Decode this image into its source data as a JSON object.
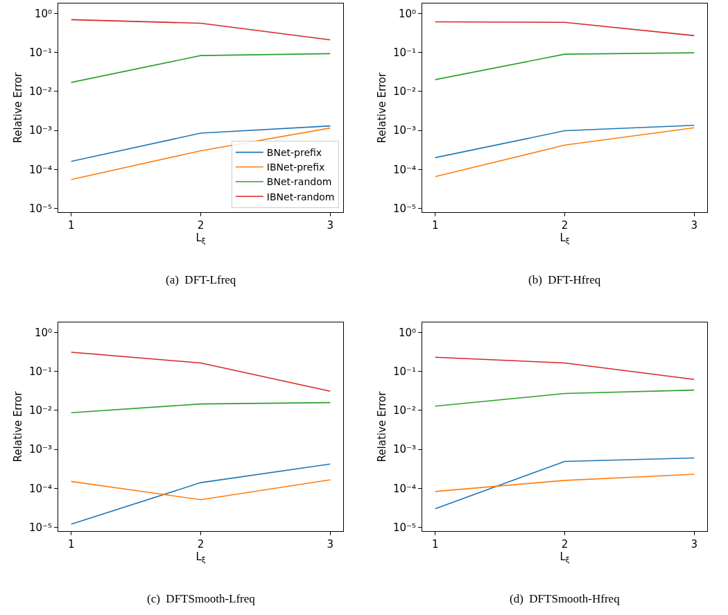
{
  "chart_data": [
    {
      "type": "line",
      "xlabel": "L$_{ξ}$",
      "ylabel": "Relative Error",
      "annotations": [
        "(a)  DFT-Lfreq"
      ],
      "x": [
        1,
        2,
        3
      ],
      "xlim": [
        0.9,
        3.1
      ],
      "xticks": [
        1,
        2,
        3
      ],
      "ylim": [
        8e-06,
        1.8
      ],
      "log": "y",
      "grid": false,
      "legend": "bottom right",
      "yticks": [
        {
          "value": 1e-05,
          "label": "10⁻⁵"
        },
        {
          "value": 0.0001,
          "label": "10⁻⁴"
        },
        {
          "value": 0.001,
          "label": "10⁻³"
        },
        {
          "value": 0.01,
          "label": "10⁻²"
        },
        {
          "value": 0.1,
          "label": "10⁻¹"
        },
        {
          "value": 1,
          "label": "10⁰"
        }
      ],
      "series": [
        {
          "name": "BNet-prefix",
          "color": "#1f77b4",
          "values": [
            0.00016,
            0.00085,
            0.0013
          ]
        },
        {
          "name": "IBNet-prefix",
          "color": "#ff7f0e",
          "values": [
            5.5e-05,
            0.0003,
            0.00115
          ]
        },
        {
          "name": "BNet-random",
          "color": "#2ca02c",
          "values": [
            0.017,
            0.083,
            0.093
          ]
        },
        {
          "name": "IBNet-random",
          "color": "#d62728",
          "values": [
            0.69,
            0.56,
            0.21
          ]
        }
      ]
    },
    {
      "type": "line",
      "xlabel": "L$_{ξ}$",
      "ylabel": "Relative Error",
      "annotations": [
        "(b)  DFT-Hfreq"
      ],
      "x": [
        1,
        2,
        3
      ],
      "xlim": [
        0.9,
        3.1
      ],
      "xticks": [
        1,
        2,
        3
      ],
      "ylim": [
        8e-06,
        1.8
      ],
      "log": "y",
      "grid": false,
      "yticks": [
        {
          "value": 1e-05,
          "label": "10⁻⁵"
        },
        {
          "value": 0.0001,
          "label": "10⁻⁴"
        },
        {
          "value": 0.001,
          "label": "10⁻³"
        },
        {
          "value": 0.01,
          "label": "10⁻²"
        },
        {
          "value": 0.1,
          "label": "10⁻¹"
        },
        {
          "value": 1,
          "label": "10⁰"
        }
      ],
      "series": [
        {
          "color": "#1f77b4",
          "values": [
            0.0002,
            0.00098,
            0.00135
          ]
        },
        {
          "color": "#ff7f0e",
          "values": [
            6.5e-05,
            0.00042,
            0.00117
          ]
        },
        {
          "color": "#2ca02c",
          "values": [
            0.02,
            0.09,
            0.098
          ]
        },
        {
          "color": "#d62728",
          "values": [
            0.61,
            0.59,
            0.27
          ]
        }
      ]
    },
    {
      "type": "line",
      "xlabel": "L$_{ξ}$",
      "ylabel": "Relative Error",
      "annotations": [
        "(c)  DFTSmooth-Lfreq"
      ],
      "x": [
        1,
        2,
        3
      ],
      "xlim": [
        0.9,
        3.1
      ],
      "xticks": [
        1,
        2,
        3
      ],
      "ylim": [
        8e-06,
        1.8
      ],
      "log": "y",
      "grid": false,
      "yticks": [
        {
          "value": 1e-05,
          "label": "10⁻⁵"
        },
        {
          "value": 0.0001,
          "label": "10⁻⁴"
        },
        {
          "value": 0.001,
          "label": "10⁻³"
        },
        {
          "value": 0.01,
          "label": "10⁻²"
        },
        {
          "value": 0.1,
          "label": "10⁻¹"
        },
        {
          "value": 1,
          "label": "10⁰"
        }
      ],
      "series": [
        {
          "color": "#1f77b4",
          "values": [
            1.2e-05,
            0.00014,
            0.00042
          ]
        },
        {
          "color": "#ff7f0e",
          "values": [
            0.00015,
            5.1e-05,
            0.000166
          ]
        },
        {
          "color": "#2ca02c",
          "values": [
            0.0087,
            0.0146,
            0.0158
          ]
        },
        {
          "color": "#d62728",
          "values": [
            0.31,
            0.164,
            0.031
          ]
        }
      ]
    },
    {
      "type": "line",
      "xlabel": "L$_{ξ}$",
      "ylabel": "Relative Error",
      "annotations": [
        "(d)  DFTSmooth-Hfreq"
      ],
      "x": [
        1,
        2,
        3
      ],
      "xlim": [
        0.9,
        3.1
      ],
      "xticks": [
        1,
        2,
        3
      ],
      "ylim": [
        8e-06,
        1.8
      ],
      "log": "y",
      "grid": false,
      "yticks": [
        {
          "value": 1e-05,
          "label": "10⁻⁵"
        },
        {
          "value": 0.0001,
          "label": "10⁻⁴"
        },
        {
          "value": 0.001,
          "label": "10⁻³"
        },
        {
          "value": 0.01,
          "label": "10⁻²"
        },
        {
          "value": 0.1,
          "label": "10⁻¹"
        },
        {
          "value": 1,
          "label": "10⁰"
        }
      ],
      "series": [
        {
          "color": "#1f77b4",
          "values": [
            3e-05,
            0.00049,
            0.0006
          ]
        },
        {
          "color": "#ff7f0e",
          "values": [
            8.3e-05,
            0.00016,
            0.00023
          ]
        },
        {
          "color": "#2ca02c",
          "values": [
            0.0128,
            0.027,
            0.033
          ]
        },
        {
          "color": "#d62728",
          "values": [
            0.23,
            0.164,
            0.062
          ]
        }
      ]
    }
  ]
}
